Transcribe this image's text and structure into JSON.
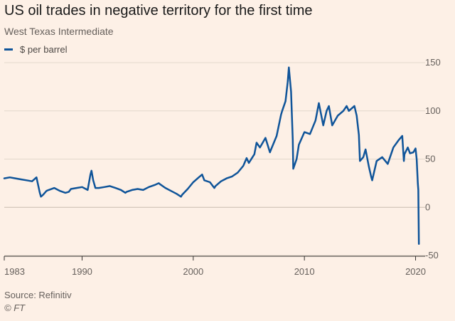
{
  "title": "US oil trades in negative territory for the first time",
  "subtitle": "West Texas Intermediate",
  "source": "Source: Refinitiv",
  "copyright": "© FT",
  "colors": {
    "background": "#fdf0e6",
    "line": "#0f5499",
    "grid": "#e3d7cc",
    "zero": "#c9bcb0",
    "axis_text": "#66605c"
  },
  "chart_data": {
    "type": "line",
    "title": "US oil trades in negative territory for the first time",
    "subtitle": "West Texas Intermediate",
    "xlabel": "",
    "ylabel": "",
    "xlim": [
      1983.0,
      2020.35
    ],
    "ylim": [
      -50,
      150
    ],
    "x_ticks": [
      1983,
      1990,
      2000,
      2010,
      2020
    ],
    "x_tick_labels": [
      "1983",
      "1990",
      "2000",
      "2010",
      "2020"
    ],
    "y_ticks": [
      150,
      100,
      50,
      0,
      -50
    ],
    "y_tick_labels": [
      "150",
      "100",
      "50",
      "0",
      "-50"
    ],
    "grid": "horizontal",
    "legend_position": "top-left",
    "series": [
      {
        "name": "$ per barrel",
        "x": [
          1983.0,
          1983.5,
          1984.0,
          1984.5,
          1985.0,
          1985.5,
          1985.9,
          1986.2,
          1986.3,
          1986.5,
          1986.8,
          1987.0,
          1987.5,
          1988.0,
          1988.5,
          1988.8,
          1989.0,
          1989.5,
          1990.0,
          1990.5,
          1990.75,
          1990.85,
          1991.0,
          1991.2,
          1991.5,
          1992.0,
          1992.5,
          1993.0,
          1993.5,
          1993.9,
          1994.0,
          1994.5,
          1995.0,
          1995.5,
          1996.0,
          1996.5,
          1996.9,
          1997.0,
          1997.5,
          1998.0,
          1998.5,
          1998.9,
          1999.0,
          1999.5,
          2000.0,
          2000.5,
          2000.8,
          2001.0,
          2001.5,
          2001.9,
          2002.0,
          2002.5,
          2003.0,
          2003.5,
          2004.0,
          2004.5,
          2004.8,
          2005.0,
          2005.5,
          2005.7,
          2006.0,
          2006.5,
          2006.9,
          2007.0,
          2007.5,
          2007.9,
          2008.0,
          2008.3,
          2008.5,
          2008.6,
          2008.8,
          2008.95,
          2009.0,
          2009.3,
          2009.5,
          2010.0,
          2010.5,
          2011.0,
          2011.3,
          2011.7,
          2012.0,
          2012.2,
          2012.5,
          2013.0,
          2013.5,
          2013.8,
          2014.0,
          2014.5,
          2014.7,
          2014.9,
          2015.0,
          2015.3,
          2015.5,
          2015.8,
          2016.0,
          2016.1,
          2016.5,
          2017.0,
          2017.5,
          2018.0,
          2018.5,
          2018.8,
          2018.95,
          2019.0,
          2019.3,
          2019.5,
          2019.8,
          2020.0,
          2020.1,
          2020.2,
          2020.25,
          2020.3
        ],
        "values": [
          30,
          31,
          30,
          29,
          28,
          27,
          31,
          15,
          11,
          13,
          17,
          18,
          20,
          17,
          15,
          16,
          19,
          20,
          21,
          18,
          34,
          38,
          28,
          20,
          20,
          21,
          22,
          20,
          18,
          15,
          16,
          18,
          19,
          18,
          21,
          23,
          25,
          24,
          20,
          17,
          14,
          11,
          13,
          19,
          26,
          31,
          34,
          28,
          26,
          20,
          22,
          27,
          30,
          32,
          36,
          43,
          51,
          46,
          55,
          67,
          62,
          72,
          57,
          60,
          74,
          96,
          100,
          110,
          130,
          145,
          120,
          70,
          40,
          50,
          65,
          78,
          76,
          90,
          108,
          85,
          100,
          105,
          85,
          95,
          100,
          105,
          100,
          105,
          95,
          75,
          48,
          52,
          60,
          42,
          32,
          28,
          48,
          52,
          45,
          62,
          70,
          74,
          48,
          55,
          62,
          56,
          57,
          61,
          50,
          25,
          18,
          -38
        ]
      }
    ]
  }
}
